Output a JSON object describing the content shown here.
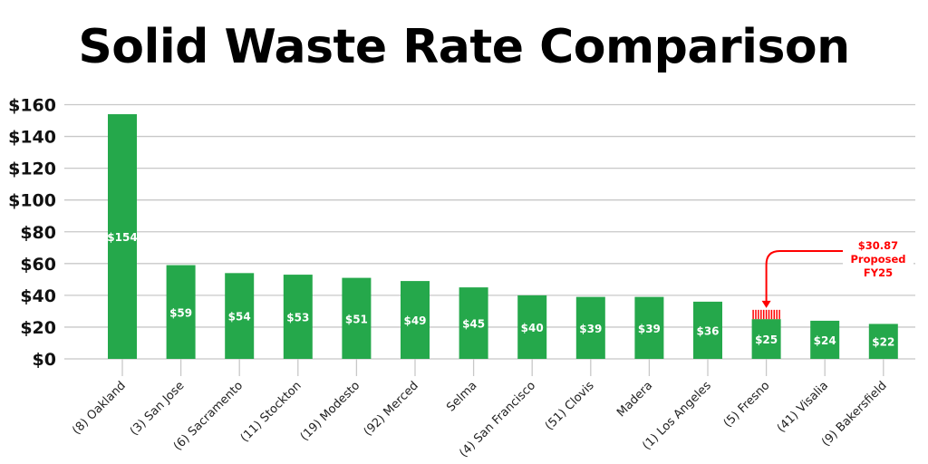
{
  "chart_data": {
    "type": "bar",
    "title": "Solid Waste Rate Comparison",
    "xlabel": "",
    "ylabel": "",
    "ylim": [
      0,
      160
    ],
    "yticks": [
      0,
      20,
      40,
      60,
      80,
      100,
      120,
      140,
      160
    ],
    "ytick_labels": [
      "$0",
      "$20",
      "$40",
      "$60",
      "$80",
      "$100",
      "$120",
      "$140",
      "$160"
    ],
    "grid": true,
    "categories": [
      "(8) Oakland",
      "(3) San Jose",
      "(6) Sacramento",
      "(11) Stockton",
      "(19) Modesto",
      "(92) Merced",
      "Selma",
      "(4) San Francisco",
      "(51) Clovis",
      "Madera",
      "(1) Los Angeles",
      "(5) Fresno",
      "(41) Visalia",
      "(9) Bakersfield"
    ],
    "values": [
      154,
      59,
      54,
      53,
      51,
      49,
      45,
      40,
      39,
      39,
      36,
      25,
      24,
      22
    ],
    "data_labels": [
      "$154",
      "$59",
      "$54",
      "$53",
      "$51",
      "$49",
      "$45",
      "$40",
      "$39",
      "$39",
      "$36",
      "$25",
      "$24",
      "$22"
    ],
    "bar_color": "#25a84b",
    "annotation": {
      "category": "(5) Fresno",
      "value": 30.87,
      "lines": [
        "$30.87",
        "Proposed",
        "FY25"
      ],
      "color": "#ff0000"
    }
  }
}
